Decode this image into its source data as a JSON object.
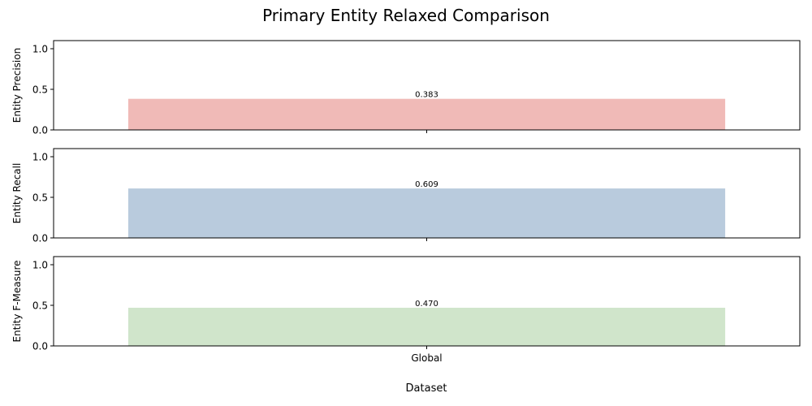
{
  "chart_data": {
    "type": "bar",
    "title": "Primary Entity Relaxed Comparison",
    "xlabel": "Dataset",
    "categories": [
      "Global"
    ],
    "ylim": [
      0,
      1.1
    ],
    "yticks": [
      "0.0",
      "0.5",
      "1.0"
    ],
    "grid": false,
    "legend": "none",
    "panels": [
      {
        "ylabel": "Entity Precision",
        "values": [
          0.383
        ],
        "value_labels": [
          "0.383"
        ],
        "color": "#f0bab7"
      },
      {
        "ylabel": "Entity Recall",
        "values": [
          0.609
        ],
        "value_labels": [
          "0.609"
        ],
        "color": "#b9cbdd"
      },
      {
        "ylabel": "Entity F-Measure",
        "values": [
          0.47
        ],
        "value_labels": [
          "0.470"
        ],
        "color": "#d0e5cb"
      }
    ]
  }
}
